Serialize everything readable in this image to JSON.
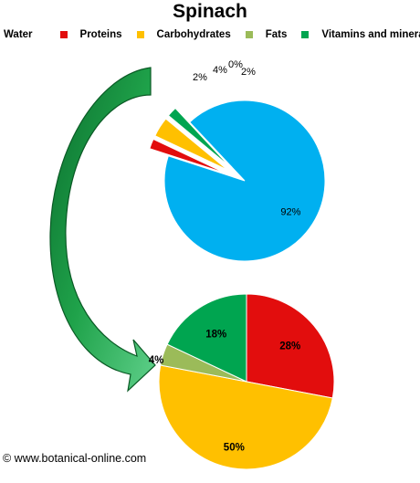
{
  "title": "Spinach",
  "legend": [
    {
      "label": "Water",
      "color": ""
    },
    {
      "label": "Proteins",
      "color": "#e20d0d"
    },
    {
      "label": "Carbohydrates",
      "color": "#ffc000"
    },
    {
      "label": "Fats",
      "color": "#9bbb59"
    },
    {
      "label": "Vitamins and minerals",
      "color": "#00a550"
    }
  ],
  "credit": "© www.botanical-online.com",
  "chart_data": [
    {
      "type": "pie",
      "categories": [
        "Water",
        "Proteins",
        "Carbohydrates",
        "Fats",
        "Vitamins and minerals"
      ],
      "values": [
        92,
        2,
        4,
        0,
        2
      ],
      "labels": [
        "92%",
        "2%",
        "4%",
        "0%",
        "2%"
      ],
      "colors": [
        "#00b0f0",
        "#e20d0d",
        "#ffc000",
        "#9bbb59",
        "#00a550"
      ],
      "exploded": [
        "Proteins",
        "Carbohydrates",
        "Fats",
        "Vitamins and minerals"
      ]
    },
    {
      "type": "pie",
      "categories": [
        "Proteins",
        "Carbohydrates",
        "Fats",
        "Vitamins and minerals"
      ],
      "values": [
        28,
        50,
        4,
        18
      ],
      "labels": [
        "28%",
        "50%",
        "4%",
        "18%"
      ],
      "colors": [
        "#e20d0d",
        "#ffc000",
        "#9bbb59",
        "#00a550"
      ]
    }
  ]
}
